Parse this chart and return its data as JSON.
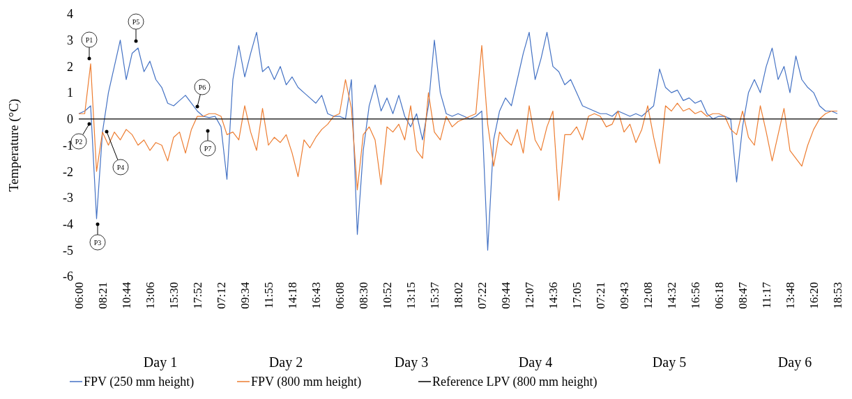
{
  "chart_data": {
    "type": "line",
    "ylabel": "Temperature (°C)",
    "legend": "bottom",
    "grid": false,
    "ylim": [
      -6,
      4
    ],
    "yticks": [
      -6,
      -5,
      -4,
      -3,
      -2,
      -1,
      0,
      1,
      2,
      3,
      4
    ],
    "categories": [
      "06:00",
      null,
      null,
      null,
      "08:21",
      null,
      null,
      null,
      "10:44",
      null,
      null,
      null,
      "13:06",
      null,
      null,
      null,
      "15:30",
      null,
      null,
      null,
      "17:52",
      null,
      null,
      null,
      "07:12",
      null,
      null,
      null,
      "09:34",
      null,
      null,
      null,
      "11:55",
      null,
      null,
      null,
      "14:18",
      null,
      null,
      null,
      "16:43",
      null,
      null,
      null,
      "06:08",
      null,
      null,
      null,
      "08:30",
      null,
      null,
      null,
      "10:52",
      null,
      null,
      null,
      "13:15",
      null,
      null,
      null,
      "15:37",
      null,
      null,
      null,
      "18:02",
      null,
      null,
      null,
      "07:22",
      null,
      null,
      null,
      "09:44",
      null,
      null,
      null,
      "12:07",
      null,
      null,
      null,
      "14:36",
      null,
      null,
      null,
      "17:05",
      null,
      null,
      null,
      "07:21",
      null,
      null,
      null,
      "09:43",
      null,
      null,
      null,
      "12:08",
      null,
      null,
      null,
      "14:32",
      null,
      null,
      null,
      "16:56",
      null,
      null,
      null,
      "06:18",
      null,
      null,
      null,
      "08:47",
      null,
      null,
      null,
      "11:17",
      null,
      null,
      null,
      "13:48",
      null,
      null,
      null,
      "16:20",
      null,
      null,
      null,
      "18:53"
    ],
    "series": [
      {
        "name": "FPV (250 mm height)",
        "color": "#4472c4",
        "values": [
          0.2,
          0.3,
          0.5,
          -3.8,
          -0.5,
          1.0,
          2.0,
          3.0,
          1.5,
          2.5,
          2.7,
          1.8,
          2.2,
          1.5,
          1.2,
          0.6,
          0.5,
          0.7,
          0.9,
          0.6,
          0.3,
          0.1,
          0.05,
          0.1,
          -0.3,
          -2.3,
          1.5,
          2.8,
          1.6,
          2.5,
          3.3,
          1.8,
          2.0,
          1.5,
          2.0,
          1.3,
          1.6,
          1.2,
          1.0,
          0.8,
          0.6,
          0.9,
          0.2,
          0.1,
          0.1,
          0.0,
          1.5,
          -4.4,
          -1.2,
          0.5,
          1.3,
          0.3,
          0.8,
          0.2,
          0.9,
          0.1,
          -0.3,
          0.2,
          -0.8,
          0.5,
          3.0,
          1.0,
          0.2,
          0.1,
          0.2,
          0.1,
          0.0,
          0.1,
          0.3,
          -5.0,
          -0.8,
          0.3,
          0.8,
          0.5,
          1.5,
          2.5,
          3.3,
          1.5,
          2.3,
          3.3,
          2.0,
          1.8,
          1.3,
          1.5,
          1.0,
          0.5,
          0.4,
          0.3,
          0.2,
          0.2,
          0.1,
          0.3,
          0.2,
          0.1,
          0.2,
          0.1,
          0.3,
          0.5,
          1.9,
          1.2,
          1.0,
          1.1,
          0.7,
          0.8,
          0.6,
          0.7,
          0.2,
          0.0,
          0.1,
          0.1,
          0.0,
          -2.4,
          -0.3,
          1.0,
          1.5,
          1.0,
          2.0,
          2.7,
          1.5,
          2.0,
          1.0,
          2.4,
          1.5,
          1.2,
          1.0,
          0.5,
          0.3,
          0.3,
          0.2
        ]
      },
      {
        "name": "FPV (800 mm height)",
        "color": "#ed7d31",
        "values": [
          0.2,
          0.2,
          2.1,
          -2.0,
          -0.5,
          -1.0,
          -0.5,
          -0.8,
          -0.4,
          -0.6,
          -1.0,
          -0.8,
          -1.2,
          -0.9,
          -1.0,
          -1.6,
          -0.7,
          -0.5,
          -1.3,
          -0.4,
          0.1,
          0.1,
          0.2,
          0.2,
          0.1,
          -0.6,
          -0.5,
          -0.8,
          0.5,
          -0.5,
          -1.2,
          0.4,
          -1.0,
          -0.7,
          -0.9,
          -0.6,
          -1.3,
          -2.2,
          -0.8,
          -1.1,
          -0.7,
          -0.4,
          -0.2,
          0.1,
          0.2,
          1.5,
          0.4,
          -2.7,
          -0.6,
          -0.3,
          -0.8,
          -2.5,
          -0.3,
          -0.5,
          -0.2,
          -0.8,
          0.5,
          -1.2,
          -1.5,
          1.0,
          -0.5,
          -0.8,
          0.1,
          -0.3,
          -0.1,
          0.0,
          0.1,
          0.2,
          2.8,
          -0.2,
          -1.8,
          -0.5,
          -0.8,
          -1.0,
          -0.4,
          -1.3,
          0.5,
          -0.8,
          -1.2,
          -0.3,
          0.3,
          -3.1,
          -0.6,
          -0.6,
          -0.3,
          -0.8,
          0.1,
          0.2,
          0.1,
          -0.3,
          -0.2,
          0.3,
          -0.5,
          -0.2,
          -0.9,
          -0.4,
          0.5,
          -0.7,
          -1.7,
          0.5,
          0.3,
          0.6,
          0.3,
          0.4,
          0.2,
          0.3,
          0.1,
          0.2,
          0.2,
          0.1,
          -0.4,
          -0.6,
          0.3,
          -0.7,
          -1.0,
          0.5,
          -0.5,
          -1.6,
          -0.6,
          0.4,
          -1.2,
          -1.5,
          -1.8,
          -1.0,
          -0.4,
          0.0,
          0.2,
          0.3,
          0.3
        ]
      },
      {
        "name": "Reference LPV (800 mm height)",
        "color": "#000000",
        "values": [
          0,
          0,
          0,
          0,
          0,
          0,
          0,
          0,
          0,
          0,
          0,
          0,
          0,
          0,
          0,
          0,
          0,
          0,
          0,
          0,
          0,
          0,
          0,
          0,
          0,
          0,
          0,
          0,
          0,
          0,
          0,
          0,
          0,
          0,
          0,
          0,
          0,
          0,
          0,
          0,
          0,
          0,
          0,
          0,
          0,
          0,
          0,
          0,
          0,
          0,
          0,
          0,
          0,
          0,
          0,
          0,
          0,
          0,
          0,
          0,
          0,
          0,
          0,
          0,
          0,
          0,
          0,
          0,
          0,
          0,
          0,
          0,
          0,
          0,
          0,
          0,
          0,
          0,
          0,
          0,
          0,
          0,
          0,
          0,
          0,
          0,
          0,
          0,
          0,
          0,
          0,
          0,
          0,
          0,
          0,
          0,
          0,
          0,
          0,
          0,
          0,
          0,
          0,
          0,
          0,
          0,
          0,
          0,
          0,
          0,
          0,
          0,
          0,
          0,
          0,
          0,
          0,
          0,
          0,
          0,
          0,
          0,
          0,
          0,
          0,
          0,
          0,
          0,
          0
        ]
      }
    ],
    "annotations": [
      "P1",
      "P2",
      "P3",
      "P4",
      "P5",
      "P6",
      "P7",
      "Day 1",
      "Day 2",
      "Day 3",
      "Day 4",
      "Day 5",
      "Day 6"
    ]
  }
}
